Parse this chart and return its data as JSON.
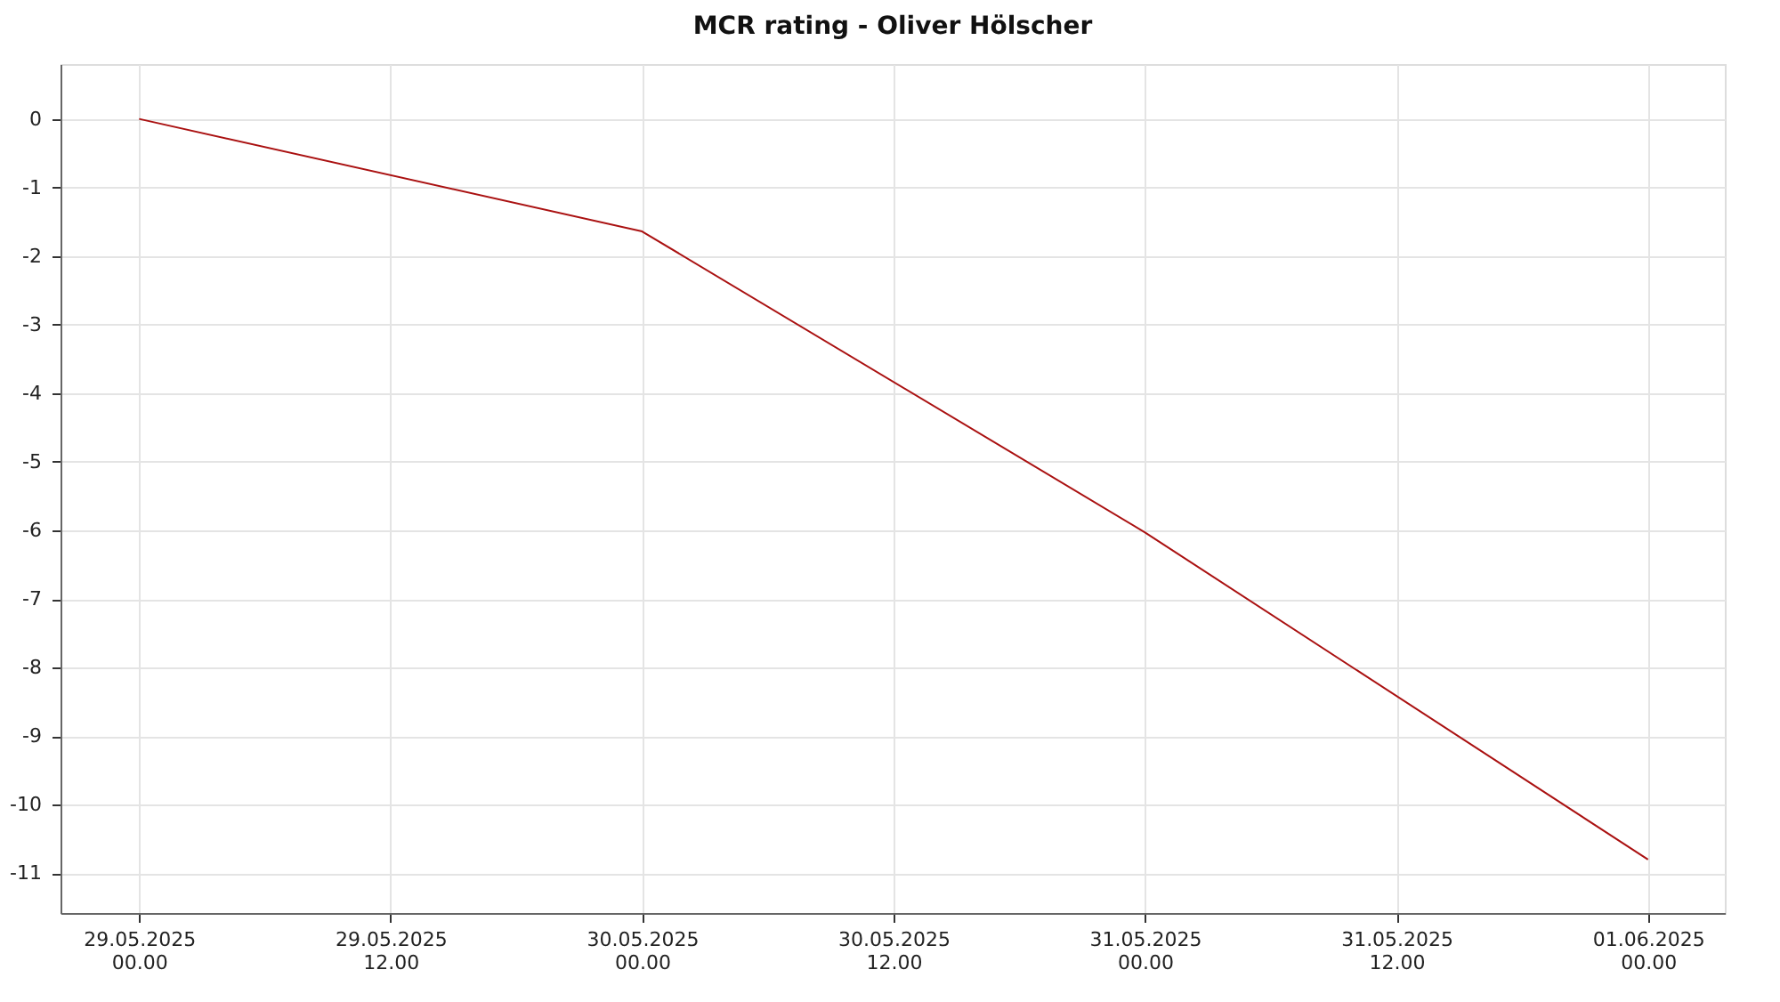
{
  "chart_data": {
    "type": "line",
    "title": "MCR rating - Oliver Hölscher",
    "x": [
      "2025-05-29T00:00",
      "2025-05-30T00:00",
      "2025-05-31T00:00",
      "2025-06-01T00:00"
    ],
    "series": [
      {
        "color": "#aa1111",
        "values": [
          0,
          -1.64,
          -6.03,
          -10.8
        ]
      }
    ],
    "xlim": [
      "2025-05-28T20:15",
      "2025-06-01T03:40"
    ],
    "xticks": [
      {
        "value": "2025-05-29T00:00",
        "label": "29.05.2025\n00.00"
      },
      {
        "value": "2025-05-29T12:00",
        "label": "29.05.2025\n12.00"
      },
      {
        "value": "2025-05-30T00:00",
        "label": "30.05.2025\n00.00"
      },
      {
        "value": "2025-05-30T12:00",
        "label": "30.05.2025\n12.00"
      },
      {
        "value": "2025-05-31T00:00",
        "label": "31.05.2025\n00.00"
      },
      {
        "value": "2025-05-31T12:00",
        "label": "31.05.2025\n12.00"
      },
      {
        "value": "2025-06-01T00:00",
        "label": "01.06.2025\n00.00"
      }
    ],
    "ylim": [
      -11.58,
      0.8
    ],
    "yticks": [
      0,
      -1,
      -2,
      -3,
      -4,
      -5,
      -6,
      -7,
      -8,
      -9,
      -10,
      -11
    ],
    "grid": true,
    "legend": false,
    "marker": "none",
    "line_style": "solid"
  }
}
